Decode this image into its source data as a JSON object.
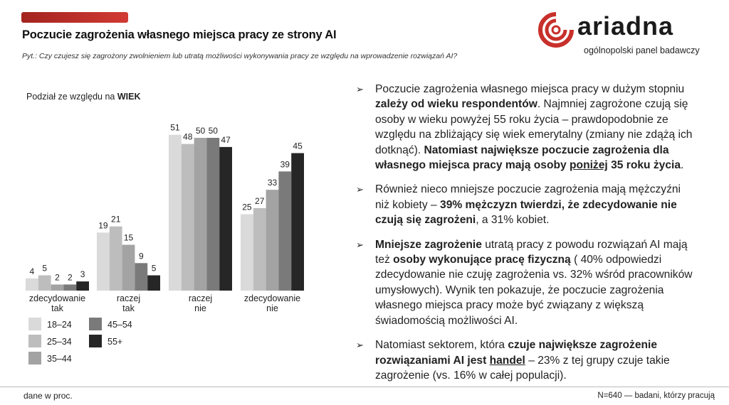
{
  "header": {
    "title": "Poczucie zagrożenia własnego miejsca pracy ze strony AI",
    "question": "Pyt.: Czy czujesz się zagrożony zwolnieniem lub utratą możliwości wykonywania pracy ze względu na wprowadzenie rozwiązań AI?",
    "brand_color": "#c8302b"
  },
  "logo": {
    "word": "ariadna",
    "tagline": "ogólnopolski panel badawczy"
  },
  "chart_subtitle": {
    "prefix": "Podział ze względu na ",
    "emphasis": "WIEK"
  },
  "chart_data": {
    "type": "bar",
    "title": "Podział ze względu na WIEK",
    "categories": [
      [
        "zdecydowanie",
        "tak"
      ],
      [
        "raczej",
        "tak"
      ],
      [
        "raczej",
        "nie"
      ],
      [
        "zdecydowanie",
        "nie"
      ]
    ],
    "series": [
      {
        "name": "18–24",
        "color": "#dadada",
        "values": [
          4,
          19,
          51,
          25
        ]
      },
      {
        "name": "25–34",
        "color": "#bdbdbd",
        "values": [
          5,
          21,
          48,
          27
        ]
      },
      {
        "name": "35–44",
        "color": "#a3a3a3",
        "values": [
          2,
          15,
          50,
          33
        ]
      },
      {
        "name": "45–54",
        "color": "#7a7a7a",
        "values": [
          2,
          9,
          50,
          39
        ]
      },
      {
        "name": "55+",
        "color": "#262626",
        "values": [
          3,
          5,
          47,
          45
        ]
      }
    ],
    "ylim": [
      0,
      55
    ],
    "grid": false,
    "legend": "bottom-left",
    "xlabel": "",
    "ylabel": ""
  },
  "bullets": [
    [
      {
        "t": "Poczucie zagrożenia własnego miejsca pracy w dużym stopniu "
      },
      {
        "t": "zależy od wieku respondentów",
        "b": true
      },
      {
        "t": ". Najmniej zagrożone czują się osoby w wieku powyżej 55 roku życia – prawdopodobnie ze względu na zbliżający się wiek emerytalny (zmiany nie zdążą ich dotknąć). "
      },
      {
        "t": "Natomiast największe poczucie zagrożenia dla własnego miejsca pracy mają osoby ",
        "b": true
      },
      {
        "t": "poniżej",
        "b": true,
        "u": true
      },
      {
        "t": " 35 roku życia",
        "b": true
      },
      {
        "t": "."
      }
    ],
    [
      {
        "t": "Również nieco mniejsze poczucie zagrożenia mają mężczyźni niż kobiety – "
      },
      {
        "t": "39% mężczyzn twierdzi, że zdecydowanie nie czują się zagrożeni",
        "b": true
      },
      {
        "t": ", a 31% kobiet."
      }
    ],
    [
      {
        "t": "Mniejsze zagrożenie",
        "b": true
      },
      {
        "t": " utratą pracy z powodu rozwiązań AI mają też "
      },
      {
        "t": "osoby wykonujące pracę fizyczną",
        "b": true
      },
      {
        "t": " ( 40% odpowiedzi zdecydowanie nie czuję zagrożenia vs. 32% wśród pracowników umysłowych). Wynik ten pokazuje, że poczucie zagrożenia własnego miejsca pracy może być związany z większą świadomością możliwości AI."
      }
    ],
    [
      {
        "t": "Natomiast sektorem, która "
      },
      {
        "t": "czuje największe zagrożenie rozwiązaniami AI jest ",
        "b": true
      },
      {
        "t": "handel",
        "b": true,
        "u": true
      },
      {
        "t": " – 23% z tej grupy czuje takie zagrożenie (vs. 16% w całej populacji)."
      }
    ]
  ],
  "footer": {
    "left": "dane w proc.",
    "right": "N=640 — badani, którzy pracują"
  }
}
